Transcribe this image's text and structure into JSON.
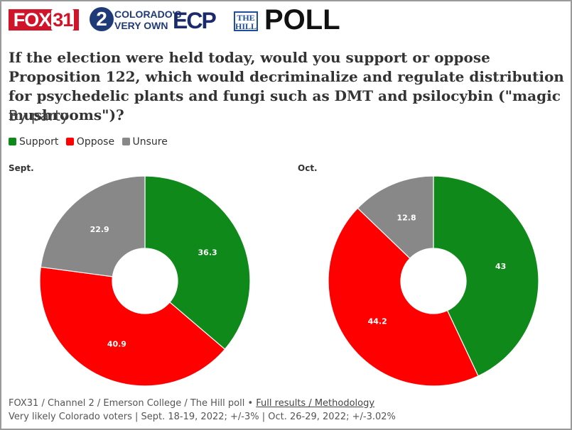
{
  "header": {
    "fox_brand": "FOX",
    "fox_number": "31",
    "channel2_number": "2",
    "channel2_text": "COLORADO'S\nVERY OWN",
    "ecp_logo": "ECP",
    "hill_logo": "THE HILL",
    "poll_label": "POLL"
  },
  "headline": "If the election were held today, would you support or oppose Proposition 122, which would decriminalize and regulate distribution for psychedelic plants and fungi such as DMT and psilocybin (\"magic mushrooms\")?",
  "subtitle": "By party",
  "legend": [
    {
      "label": "Support",
      "color": "#0f8a1a"
    },
    {
      "label": "Oppose",
      "color": "#ff0000"
    },
    {
      "label": "Unsure",
      "color": "#888888"
    }
  ],
  "chart_data": [
    {
      "type": "pie",
      "title": "Sept.",
      "categories": [
        "Support",
        "Oppose",
        "Unsure"
      ],
      "values": [
        36.3,
        40.9,
        22.9
      ],
      "colors": [
        "#0f8a1a",
        "#ff0000",
        "#888888"
      ],
      "donut": true
    },
    {
      "type": "pie",
      "title": "Oct.",
      "categories": [
        "Support",
        "Oppose",
        "Unsure"
      ],
      "values": [
        43,
        44.2,
        12.8
      ],
      "colors": [
        "#0f8a1a",
        "#ff0000",
        "#888888"
      ],
      "donut": true
    }
  ],
  "footer": {
    "source_text": "FOX31 / Channel 2 / Emerson College / The Hill poll •",
    "link_text": "Full results / Methodology",
    "note": "Very likely Colorado voters | Sept. 18-19, 2022; +/-3% | Oct. 26-29, 2022; +/-3.02%"
  }
}
